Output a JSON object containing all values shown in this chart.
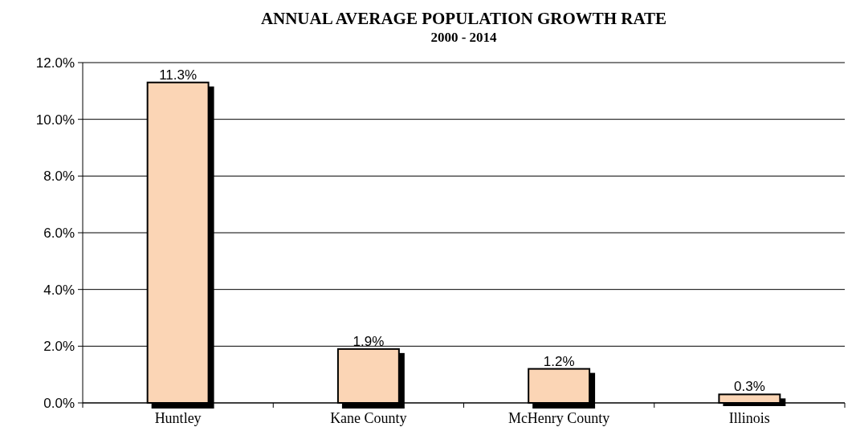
{
  "chart_data": {
    "type": "bar",
    "title": "ANNUAL AVERAGE POPULATION GROWTH RATE",
    "subtitle": "2000 - 2014",
    "categories": [
      "Huntley",
      "Kane County",
      "McHenry County",
      "Illinois"
    ],
    "values": [
      11.3,
      1.9,
      1.2,
      0.3
    ],
    "color": "#fbd5b5",
    "value_labels": [
      "11.3%",
      "1.9%",
      "1.2%",
      "0.3%"
    ],
    "ylim": [
      0,
      12
    ],
    "yticks": [
      {
        "value": 0,
        "label": "0.0%"
      },
      {
        "value": 2,
        "label": "2.0%"
      },
      {
        "value": 4,
        "label": "4.0%"
      },
      {
        "value": 6,
        "label": "6.0%"
      },
      {
        "value": 8,
        "label": "8.0%"
      },
      {
        "value": 10,
        "label": "10.0%"
      },
      {
        "value": 12,
        "label": "12.0%"
      }
    ],
    "grid": "y"
  }
}
